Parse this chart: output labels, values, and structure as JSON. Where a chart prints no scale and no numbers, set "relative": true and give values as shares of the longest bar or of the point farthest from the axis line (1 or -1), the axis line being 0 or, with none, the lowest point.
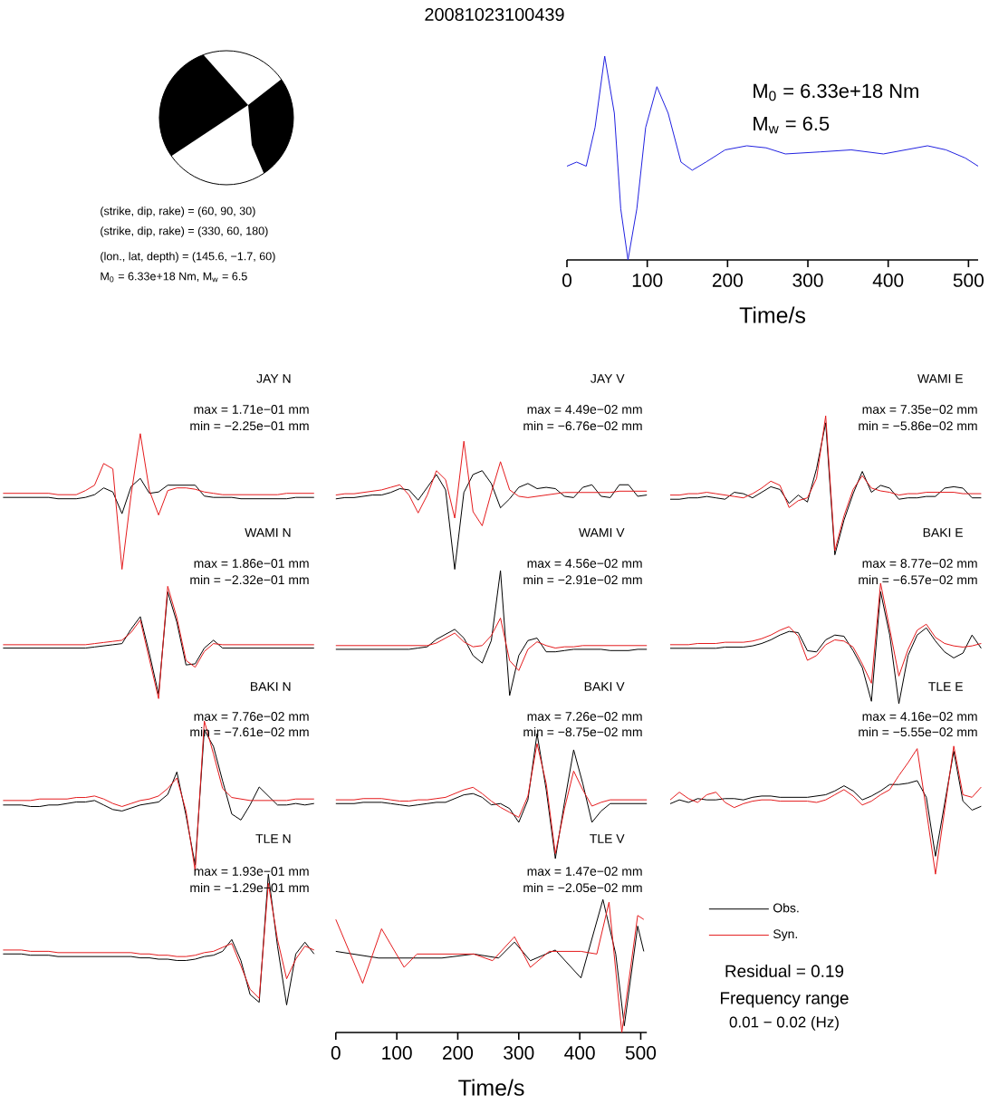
{
  "chart_data": [
    {
      "type": "other",
      "title": "20081023100439",
      "annotations": [
        "(strike, dip, rake) = (60, 90, 30)",
        "(strike, dip, rake) = (330, 60, 180)",
        "(lon., lat, depth) = (145.6, −1.7, 60)",
        "M$_{0}$ = 6.33e+18 Nm, M$_{w}$ = 6.5"
      ]
    },
    {
      "type": "line",
      "relative": true,
      "tick_labels": "x",
      "xlim": [
        0,
        512
      ],
      "xticks": [
        0,
        100,
        200,
        300,
        400,
        500
      ],
      "xlabel": "Time/s",
      "annotations": [
        "M$_{0}$ = 6.33e+18 Nm",
        "M$_{w}$ = 6.5"
      ],
      "series": [
        {
          "color": "#2020e0",
          "x": [
            0,
            12,
            24,
            35,
            47,
            59,
            67,
            76,
            87,
            98,
            112,
            126,
            142,
            156,
            173,
            197,
            224,
            248,
            272,
            315,
            354,
            394,
            449,
            472,
            496,
            512
          ],
          "values": [
            0.46,
            0.48,
            0.46,
            0.65,
            1.0,
            0.72,
            0.25,
            0,
            0.25,
            0.65,
            0.85,
            0.72,
            0.48,
            0.44,
            0.48,
            0.54,
            0.56,
            0.55,
            0.52,
            0.53,
            0.54,
            0.52,
            0.56,
            0.54,
            0.5,
            0.46
          ]
        }
      ]
    },
    {
      "type": "line",
      "relative": true,
      "tick_labels": false,
      "title": "JAY N",
      "annotations": [
        "max = 1.71e−01 mm",
        "min = −2.25e−01 mm"
      ],
      "categories": [
        null,
        null,
        null,
        null,
        null,
        null,
        null,
        null,
        null,
        null,
        null,
        null,
        null,
        null,
        null,
        null,
        null,
        null,
        null,
        null,
        null,
        null,
        null,
        null,
        null,
        null,
        null,
        null,
        null,
        null,
        null,
        null,
        null,
        null,
        null
      ],
      "series": [
        {
          "color": "#000000",
          "values": [
            0.53,
            0.53,
            0.53,
            0.53,
            0.53,
            0.53,
            0.52,
            0.52,
            0.52,
            0.53,
            0.55,
            0.6,
            0.57,
            0.41,
            0.61,
            0.67,
            0.56,
            0.57,
            0.62,
            0.62,
            0.62,
            0.62,
            0.54,
            0.53,
            0.53,
            0.53,
            0.52,
            0.52,
            0.52,
            0.52,
            0.52,
            0.52,
            0.53,
            0.53,
            0.53
          ]
        },
        {
          "color": "#e41a1c",
          "values": [
            0.56,
            0.56,
            0.56,
            0.56,
            0.56,
            0.56,
            0.55,
            0.55,
            0.55,
            0.58,
            0.62,
            0.78,
            0.74,
            0,
            0.55,
            1.0,
            0.58,
            0.4,
            0.58,
            0.6,
            0.6,
            0.59,
            0.57,
            0.56,
            0.55,
            0.55,
            0.55,
            0.55,
            0.55,
            0.55,
            0.55,
            0.56,
            0.56,
            0.56,
            0.56
          ]
        }
      ]
    },
    {
      "type": "line",
      "relative": true,
      "tick_labels": false,
      "title": "JAY V",
      "annotations": [
        "max = 4.49e−02 mm",
        "min = −6.76e−02 mm"
      ],
      "categories": [
        null,
        null,
        null,
        null,
        null,
        null,
        null,
        null,
        null,
        null,
        null,
        null,
        null,
        null,
        null,
        null,
        null,
        null,
        null,
        null,
        null,
        null,
        null,
        null,
        null,
        null,
        null,
        null,
        null,
        null,
        null,
        null,
        null,
        null,
        null
      ],
      "series": [
        {
          "color": "#000000",
          "values": [
            0.55,
            0.56,
            0.56,
            0.57,
            0.58,
            0.58,
            0.6,
            0.63,
            0.62,
            0.54,
            0.64,
            0.74,
            0.62,
            0,
            0.6,
            0.74,
            0.77,
            0.67,
            0.48,
            0.55,
            0.64,
            0.67,
            0.63,
            0.64,
            0.63,
            0.57,
            0.56,
            0.64,
            0.66,
            0.57,
            0.56,
            0.66,
            0.66,
            0.57,
            0.58
          ]
        },
        {
          "color": "#e41a1c",
          "values": [
            0.58,
            0.59,
            0.59,
            0.6,
            0.61,
            0.62,
            0.64,
            0.66,
            0.58,
            0.44,
            0.58,
            0.77,
            0.7,
            0.4,
            1.0,
            0.45,
            0.34,
            0.6,
            0.84,
            0.62,
            0.57,
            0.56,
            0.57,
            0.58,
            0.59,
            0.6,
            0.6,
            0.6,
            0.6,
            0.6,
            0.6,
            0.61,
            0.61,
            0.61,
            0.61
          ]
        }
      ]
    },
    {
      "type": "line",
      "relative": true,
      "tick_labels": false,
      "title": "WAMI E",
      "annotations": [
        "max = 7.35e−02 mm",
        "min = −5.86e−02 mm"
      ],
      "categories": [
        null,
        null,
        null,
        null,
        null,
        null,
        null,
        null,
        null,
        null,
        null,
        null,
        null,
        null,
        null,
        null,
        null,
        null,
        null,
        null,
        null,
        null,
        null,
        null,
        null,
        null,
        null,
        null,
        null,
        null,
        null,
        null,
        null,
        null,
        null
      ],
      "series": [
        {
          "color": "#000000",
          "values": [
            0.4,
            0.4,
            0.41,
            0.41,
            0.42,
            0.41,
            0.4,
            0.45,
            0.44,
            0.41,
            0.45,
            0.49,
            0.47,
            0.37,
            0.43,
            0.38,
            0.62,
            0.95,
            0,
            0.25,
            0.44,
            0.6,
            0.45,
            0.5,
            0.48,
            0.4,
            0.41,
            0.41,
            0.42,
            0.42,
            0.48,
            0.49,
            0.48,
            0.41,
            0.41
          ]
        },
        {
          "color": "#e41a1c",
          "values": [
            0.43,
            0.43,
            0.44,
            0.44,
            0.45,
            0.44,
            0.43,
            0.42,
            0.41,
            0.44,
            0.48,
            0.53,
            0.5,
            0.34,
            0.39,
            0.41,
            0.55,
            1.0,
            0.03,
            0.28,
            0.47,
            0.57,
            0.48,
            0.46,
            0.45,
            0.43,
            0.44,
            0.44,
            0.45,
            0.45,
            0.45,
            0.45,
            0.44,
            0.44,
            0.44
          ]
        }
      ]
    },
    {
      "type": "line",
      "relative": true,
      "tick_labels": false,
      "title": "WAMI N",
      "annotations": [
        "max = 1.86e−01 mm",
        "min = −2.32e−01 mm"
      ],
      "categories": [
        null,
        null,
        null,
        null,
        null,
        null,
        null,
        null,
        null,
        null,
        null,
        null,
        null,
        null,
        null,
        null,
        null,
        null,
        null,
        null,
        null,
        null,
        null,
        null,
        null,
        null,
        null,
        null,
        null,
        null,
        null,
        null,
        null,
        null,
        null
      ],
      "series": [
        {
          "color": "#000000",
          "values": [
            0.45,
            0.45,
            0.45,
            0.45,
            0.45,
            0.45,
            0.45,
            0.45,
            0.45,
            0.45,
            0.46,
            0.47,
            0.48,
            0.49,
            0.62,
            0.73,
            0.4,
            0.04,
            0.95,
            0.68,
            0.3,
            0.31,
            0.45,
            0.52,
            0.45,
            0.45,
            0.45,
            0.45,
            0.45,
            0.45,
            0.45,
            0.45,
            0.45,
            0.45,
            0.45
          ]
        },
        {
          "color": "#e41a1c",
          "values": [
            0.48,
            0.48,
            0.48,
            0.48,
            0.48,
            0.48,
            0.48,
            0.48,
            0.48,
            0.48,
            0.49,
            0.5,
            0.51,
            0.52,
            0.59,
            0.7,
            0.35,
            0,
            1.0,
            0.72,
            0.34,
            0.28,
            0.42,
            0.49,
            0.48,
            0.48,
            0.48,
            0.48,
            0.48,
            0.48,
            0.48,
            0.48,
            0.48,
            0.48,
            0.48
          ]
        }
      ]
    },
    {
      "type": "line",
      "relative": true,
      "tick_labels": false,
      "title": "WAMI V",
      "annotations": [
        "max = 4.56e−02 mm",
        "min = −2.91e−02 mm"
      ],
      "categories": [
        null,
        null,
        null,
        null,
        null,
        null,
        null,
        null,
        null,
        null,
        null,
        null,
        null,
        null,
        null,
        null,
        null,
        null,
        null,
        null,
        null,
        null,
        null,
        null,
        null,
        null,
        null,
        null,
        null,
        null,
        null,
        null,
        null,
        null,
        null
      ],
      "series": [
        {
          "color": "#000000",
          "values": [
            0.37,
            0.37,
            0.37,
            0.37,
            0.37,
            0.37,
            0.37,
            0.37,
            0.37,
            0.38,
            0.39,
            0.45,
            0.49,
            0.53,
            0.46,
            0.32,
            0.26,
            0.44,
            1.0,
            0,
            0.32,
            0.44,
            0.46,
            0.35,
            0.35,
            0.36,
            0.37,
            0.37,
            0.37,
            0.37,
            0.36,
            0.36,
            0.36,
            0.37,
            0.37
          ]
        },
        {
          "color": "#e41a1c",
          "values": [
            0.4,
            0.4,
            0.4,
            0.4,
            0.4,
            0.4,
            0.4,
            0.4,
            0.4,
            0.4,
            0.4,
            0.42,
            0.46,
            0.5,
            0.43,
            0.39,
            0.4,
            0.48,
            0.62,
            0.28,
            0.2,
            0.37,
            0.43,
            0.4,
            0.38,
            0.39,
            0.39,
            0.4,
            0.4,
            0.4,
            0.4,
            0.4,
            0.4,
            0.4,
            0.4
          ]
        }
      ]
    },
    {
      "type": "line",
      "relative": true,
      "tick_labels": false,
      "title": "BAKI E",
      "annotations": [
        "max = 8.77e−02 mm",
        "min = −6.57e−02 mm"
      ],
      "categories": [
        null,
        null,
        null,
        null,
        null,
        null,
        null,
        null,
        null,
        null,
        null,
        null,
        null,
        null,
        null,
        null,
        null,
        null,
        null,
        null,
        null,
        null,
        null,
        null,
        null,
        null,
        null,
        null,
        null,
        null,
        null,
        null,
        null,
        null,
        null
      ],
      "series": [
        {
          "color": "#000000",
          "values": [
            0.46,
            0.46,
            0.46,
            0.46,
            0.46,
            0.46,
            0.47,
            0.47,
            0.47,
            0.48,
            0.5,
            0.53,
            0.57,
            0.6,
            0.59,
            0.44,
            0.43,
            0.53,
            0.57,
            0.56,
            0.44,
            0.3,
            0.02,
            0.93,
            0.57,
            0,
            0.4,
            0.57,
            0.63,
            0.52,
            0.43,
            0.38,
            0.42,
            0.57,
            0.46
          ]
        },
        {
          "color": "#e41a1c",
          "values": [
            0.49,
            0.49,
            0.49,
            0.5,
            0.5,
            0.5,
            0.51,
            0.51,
            0.51,
            0.52,
            0.54,
            0.57,
            0.61,
            0.64,
            0.56,
            0.36,
            0.4,
            0.49,
            0.53,
            0.52,
            0.47,
            0.33,
            0.17,
            1.0,
            0.62,
            0.23,
            0.45,
            0.61,
            0.66,
            0.55,
            0.5,
            0.48,
            0.47,
            0.48,
            0.5
          ]
        }
      ]
    },
    {
      "type": "line",
      "relative": true,
      "tick_labels": false,
      "title": "BAKI N",
      "annotations": [
        "max = 7.76e−02 mm",
        "min = −7.61e−02 mm"
      ],
      "categories": [
        null,
        null,
        null,
        null,
        null,
        null,
        null,
        null,
        null,
        null,
        null,
        null,
        null,
        null,
        null,
        null,
        null,
        null,
        null,
        null,
        null,
        null,
        null,
        null,
        null,
        null,
        null,
        null,
        null,
        null,
        null,
        null,
        null,
        null,
        null
      ],
      "series": [
        {
          "color": "#000000",
          "values": [
            0.44,
            0.44,
            0.44,
            0.43,
            0.43,
            0.44,
            0.44,
            0.45,
            0.46,
            0.46,
            0.47,
            0.44,
            0.41,
            0.4,
            0.42,
            0.44,
            0.45,
            0.46,
            0.51,
            0.66,
            0.37,
            0.04,
            0.94,
            0.83,
            0.6,
            0.38,
            0.34,
            0.44,
            0.56,
            0.5,
            0.44,
            0.44,
            0.45,
            0.44,
            0.45
          ]
        },
        {
          "color": "#e41a1c",
          "values": [
            0.47,
            0.47,
            0.47,
            0.47,
            0.48,
            0.48,
            0.48,
            0.48,
            0.49,
            0.49,
            0.5,
            0.48,
            0.45,
            0.43,
            0.45,
            0.47,
            0.48,
            0.5,
            0.55,
            0.62,
            0.4,
            0,
            1.0,
            0.78,
            0.55,
            0.49,
            0.48,
            0.47,
            0.47,
            0.47,
            0.47,
            0.47,
            0.48,
            0.48,
            0.48
          ]
        }
      ]
    },
    {
      "type": "line",
      "relative": true,
      "tick_labels": false,
      "title": "BAKI V",
      "annotations": [
        "max = 7.26e−02 mm",
        "min = −8.75e−02 mm"
      ],
      "categories": [
        null,
        null,
        null,
        null,
        null,
        null,
        null,
        null,
        null,
        null,
        null,
        null,
        null,
        null,
        null,
        null,
        null,
        null,
        null,
        null,
        null,
        null,
        null,
        null,
        null,
        null,
        null,
        null,
        null,
        null,
        null,
        null,
        null,
        null,
        null
      ],
      "series": [
        {
          "color": "#000000",
          "values": [
            0.44,
            0.44,
            0.44,
            0.45,
            0.45,
            0.45,
            0.44,
            0.43,
            0.42,
            0.43,
            0.44,
            0.45,
            0.45,
            0.48,
            0.51,
            0.52,
            0.49,
            0.43,
            0.44,
            0.4,
            0.29,
            0.47,
            1.0,
            0.55,
            0,
            0.45,
            0.87,
            0.6,
            0.29,
            0.38,
            0.44,
            0.44,
            0.44,
            0.44,
            0.44
          ]
        },
        {
          "color": "#e41a1c",
          "values": [
            0.47,
            0.47,
            0.47,
            0.48,
            0.48,
            0.48,
            0.47,
            0.46,
            0.46,
            0.47,
            0.47,
            0.48,
            0.49,
            0.52,
            0.55,
            0.57,
            0.52,
            0.46,
            0.41,
            0.37,
            0.33,
            0.5,
            0.92,
            0.6,
            0.04,
            0.4,
            0.7,
            0.55,
            0.42,
            0.45,
            0.47,
            0.47,
            0.47,
            0.47,
            0.47
          ]
        }
      ]
    },
    {
      "type": "line",
      "relative": true,
      "tick_labels": false,
      "title": "TLE E",
      "annotations": [
        "max = 4.16e−02 mm",
        "min = −5.55e−02 mm"
      ],
      "categories": [
        null,
        null,
        null,
        null,
        null,
        null,
        null,
        null,
        null,
        null,
        null,
        null,
        null,
        null,
        null,
        null,
        null,
        null,
        null,
        null,
        null,
        null,
        null,
        null,
        null,
        null,
        null,
        null,
        null,
        null,
        null,
        null,
        null,
        null,
        null
      ],
      "series": [
        {
          "color": "#000000",
          "values": [
            0.55,
            0.58,
            0.56,
            0.59,
            0.58,
            0.58,
            0.59,
            0.59,
            0.58,
            0.6,
            0.61,
            0.61,
            0.6,
            0.6,
            0.6,
            0.6,
            0.61,
            0.62,
            0.65,
            0.69,
            0.65,
            0.58,
            0.61,
            0.65,
            0.7,
            0.7,
            0.71,
            0.73,
            0.6,
            0.14,
            0.55,
            0.96,
            0.57,
            0.5,
            0.53
          ]
        },
        {
          "color": "#e41a1c",
          "values": [
            0.58,
            0.64,
            0.59,
            0.56,
            0.62,
            0.64,
            0.56,
            0.52,
            0.55,
            0.57,
            0.58,
            0.58,
            0.57,
            0.57,
            0.57,
            0.57,
            0.56,
            0.58,
            0.62,
            0.66,
            0.61,
            0.54,
            0.57,
            0.62,
            0.66,
            0.77,
            0.87,
            0.98,
            0.5,
            0,
            0.5,
            1.0,
            0.62,
            0.6,
            0.68
          ]
        }
      ]
    },
    {
      "type": "line",
      "relative": true,
      "tick_labels": false,
      "title": "TLE N",
      "annotations": [
        "max = 1.93e−01 mm",
        "min = −1.29e−01 mm"
      ],
      "categories": [
        null,
        null,
        null,
        null,
        null,
        null,
        null,
        null,
        null,
        null,
        null,
        null,
        null,
        null,
        null,
        null,
        null,
        null,
        null,
        null,
        null,
        null,
        null,
        null,
        null,
        null,
        null,
        null,
        null,
        null,
        null,
        null,
        null,
        null,
        null
      ],
      "series": [
        {
          "color": "#000000",
          "values": [
            0.39,
            0.39,
            0.39,
            0.38,
            0.38,
            0.38,
            0.37,
            0.37,
            0.37,
            0.37,
            0.37,
            0.37,
            0.37,
            0.37,
            0.37,
            0.36,
            0.36,
            0.35,
            0.35,
            0.34,
            0.34,
            0.35,
            0.37,
            0.38,
            0.41,
            0.5,
            0.34,
            0.08,
            0.02,
            1.0,
            0.45,
            0,
            0.39,
            0.48,
            0.39
          ]
        },
        {
          "color": "#e41a1c",
          "values": [
            0.42,
            0.42,
            0.42,
            0.41,
            0.41,
            0.41,
            0.4,
            0.4,
            0.4,
            0.4,
            0.4,
            0.4,
            0.4,
            0.4,
            0.4,
            0.39,
            0.39,
            0.38,
            0.38,
            0.37,
            0.37,
            0.38,
            0.4,
            0.41,
            0.44,
            0.47,
            0.3,
            0.12,
            0.05,
            0.93,
            0.5,
            0.2,
            0.35,
            0.45,
            0.42
          ]
        }
      ]
    },
    {
      "type": "line",
      "relative": true,
      "tick_labels": "x",
      "xlim": [
        0,
        510
      ],
      "xticks": [
        0,
        100,
        200,
        300,
        400,
        500
      ],
      "xlabel": "Time/s",
      "title": "TLE V",
      "legend": "right",
      "annotations": [
        "max = 1.47e−02 mm",
        "min = −2.05e−02 mm",
        "Residual = 0.19",
        "Frequency range",
        "0.01 − 0.02 (Hz)"
      ],
      "series": [
        {
          "name": "Obs.",
          "color": "#000000",
          "x": [
            0,
            70,
            174,
            226,
            267,
            293,
            319,
            360,
            402,
            438,
            459,
            473,
            495,
            505
          ],
          "values": [
            0.61,
            0.56,
            0.56,
            0.59,
            0.56,
            0.68,
            0.54,
            0.62,
            0.41,
            1.0,
            0.59,
            0.05,
            0.8,
            0.61
          ]
        },
        {
          "name": "Syn.",
          "color": "#e41a1c",
          "x": [
            0,
            44,
            75,
            112,
            133,
            226,
            257,
            293,
            319,
            350,
            402,
            428,
            448,
            469,
            495,
            505
          ],
          "values": [
            0.85,
            0.37,
            0.78,
            0.49,
            0.59,
            0.59,
            0.54,
            0.72,
            0.49,
            0.61,
            0.61,
            0.59,
            0.98,
            0,
            0.88,
            0.85
          ]
        }
      ]
    }
  ]
}
